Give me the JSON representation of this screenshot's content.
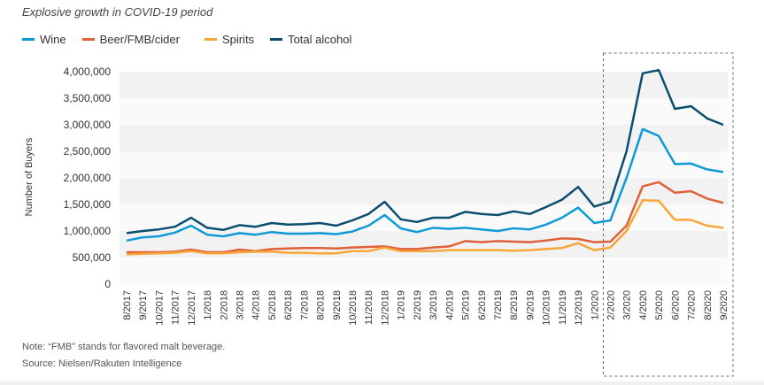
{
  "subtitle": "Explosive growth in COVID-19 period",
  "note": "Note: “FMB” stands for flavored malt beverage.",
  "source": "Source: Nielsen/Rakuten Intelligence",
  "chart_data": {
    "type": "line",
    "ylabel": "Number of Buyers",
    "ylim": [
      0,
      4000000
    ],
    "yticks": [
      "0",
      "500,000",
      "1,000,000",
      "1,500,000",
      "2,000,000",
      "2,500,000",
      "3,000,000",
      "3,500,000",
      "4,000,000"
    ],
    "ytick_values": [
      0,
      500000,
      1000000,
      1500000,
      2000000,
      2500000,
      3000000,
      3500000,
      4000000
    ],
    "grid": "alternating horizontal bands",
    "legend_placement": "top-left",
    "highlight_range": [
      "2/2020",
      "9/2020"
    ],
    "x": [
      "8/2017",
      "9/2017",
      "10/2017",
      "11/2017",
      "12/2017",
      "1/2018",
      "2/2018",
      "3/2018",
      "4/2018",
      "5/2018",
      "6/2018",
      "7/2018",
      "8/2018",
      "9/2018",
      "10/2018",
      "11/2018",
      "12/2018",
      "1/2019",
      "2/2019",
      "3/2019",
      "4/2019",
      "5/2019",
      "6/2019",
      "7/2019",
      "8/2019",
      "9/2019",
      "10/2019",
      "11/2019",
      "12/2019",
      "1/2020",
      "2/2020",
      "3/2020",
      "4/2020",
      "5/2020",
      "6/2020",
      "7/2020",
      "8/2020",
      "9/2020"
    ],
    "series": [
      {
        "name": "Wine",
        "color": "#0e9ad7",
        "values": [
          820000,
          880000,
          900000,
          970000,
          1100000,
          930000,
          900000,
          960000,
          930000,
          980000,
          950000,
          950000,
          960000,
          940000,
          990000,
          1100000,
          1300000,
          1050000,
          980000,
          1060000,
          1040000,
          1060000,
          1030000,
          1000000,
          1050000,
          1030000,
          1120000,
          1250000,
          1440000,
          1150000,
          1200000,
          2000000,
          2920000,
          2790000,
          2260000,
          2270000,
          2160000,
          2110000
        ]
      },
      {
        "name": "Beer/FMB/cider",
        "color": "#e0603a",
        "values": [
          600000,
          600000,
          600000,
          610000,
          650000,
          600000,
          600000,
          650000,
          620000,
          660000,
          670000,
          680000,
          680000,
          670000,
          690000,
          700000,
          710000,
          660000,
          660000,
          690000,
          710000,
          810000,
          790000,
          810000,
          800000,
          790000,
          820000,
          860000,
          850000,
          790000,
          800000,
          1100000,
          1840000,
          1920000,
          1720000,
          1750000,
          1610000,
          1530000
        ]
      },
      {
        "name": "Spirits",
        "color": "#f7a637",
        "values": [
          560000,
          570000,
          580000,
          590000,
          620000,
          580000,
          580000,
          600000,
          610000,
          610000,
          590000,
          590000,
          580000,
          580000,
          620000,
          620000,
          690000,
          620000,
          620000,
          620000,
          640000,
          640000,
          640000,
          640000,
          630000,
          640000,
          660000,
          680000,
          770000,
          640000,
          690000,
          1000000,
          1580000,
          1570000,
          1210000,
          1210000,
          1100000,
          1060000
        ]
      },
      {
        "name": "Total alcohol",
        "color": "#0b4f70",
        "values": [
          960000,
          1000000,
          1030000,
          1080000,
          1250000,
          1060000,
          1020000,
          1110000,
          1080000,
          1150000,
          1120000,
          1130000,
          1150000,
          1100000,
          1200000,
          1320000,
          1550000,
          1220000,
          1170000,
          1250000,
          1250000,
          1360000,
          1320000,
          1300000,
          1370000,
          1320000,
          1450000,
          1590000,
          1830000,
          1460000,
          1550000,
          2500000,
          3970000,
          4030000,
          3300000,
          3350000,
          3120000,
          3000000
        ]
      }
    ]
  }
}
